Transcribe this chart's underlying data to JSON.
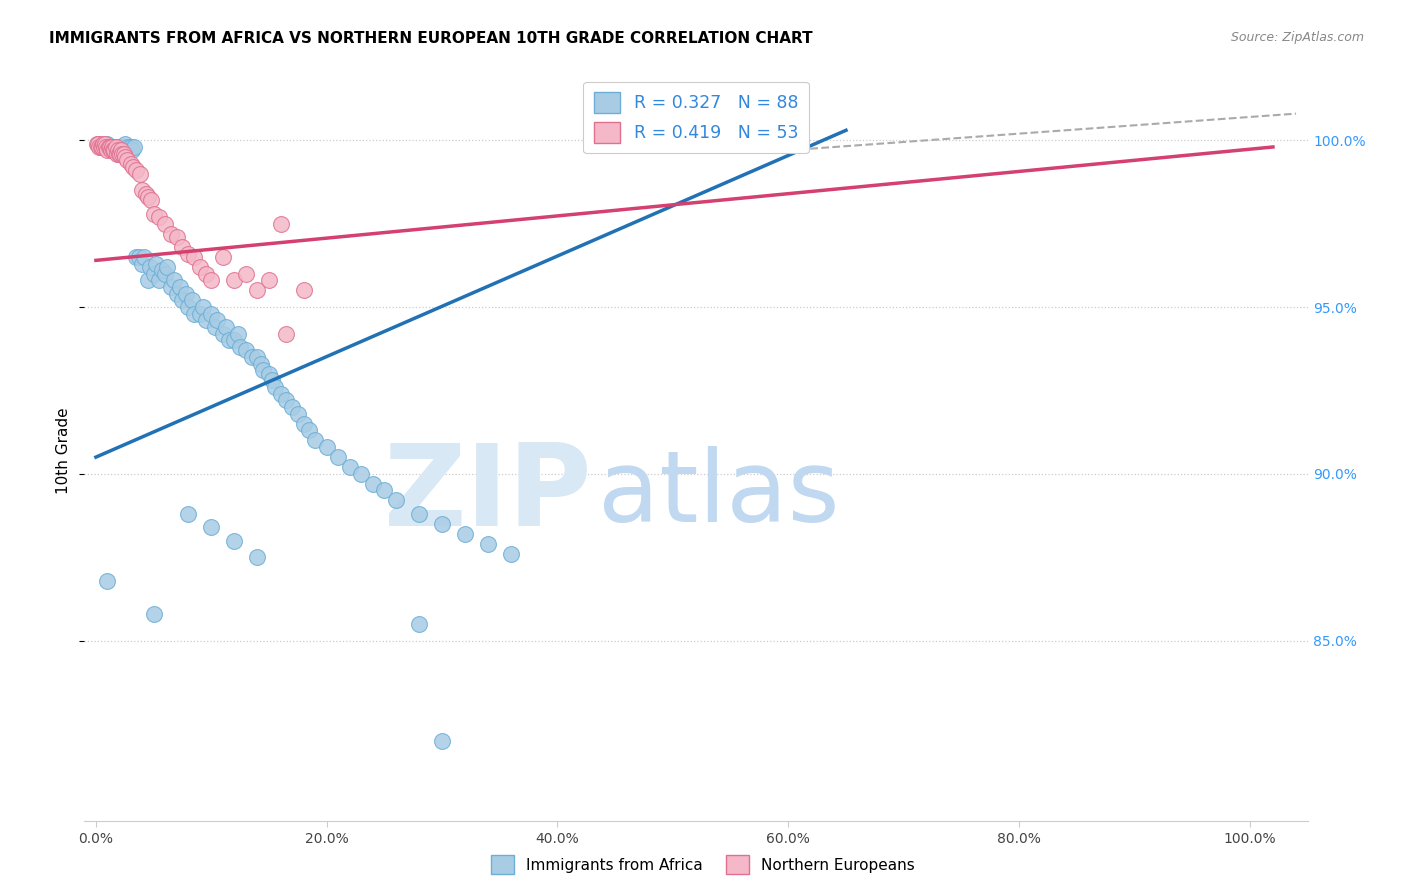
{
  "title": "IMMIGRANTS FROM AFRICA VS NORTHERN EUROPEAN 10TH GRADE CORRELATION CHART",
  "source": "Source: ZipAtlas.com",
  "ylabel": "10th Grade",
  "r_africa": 0.327,
  "n_africa": 88,
  "r_northern": 0.419,
  "n_northern": 53,
  "blue_color": "#a8cce4",
  "pink_color": "#f4b8c8",
  "blue_edge_color": "#6baed6",
  "pink_edge_color": "#e07090",
  "blue_line_color": "#2171b5",
  "pink_line_color": "#d44070",
  "legend_label_africa": "Immigrants from Africa",
  "legend_label_northern": "Northern Europeans",
  "watermark_zip": "ZIP",
  "watermark_atlas": "atlas",
  "xlim": [
    -0.01,
    1.05
  ],
  "ylim": [
    0.796,
    1.018
  ],
  "ytick_positions": [
    0.85,
    0.9,
    0.95,
    1.0
  ],
  "ytick_labels": [
    "85.0%",
    "90.0%",
    "95.0%",
    "100.0%"
  ],
  "xtick_positions": [
    0.0,
    0.2,
    0.4,
    0.6,
    0.8,
    1.0
  ],
  "xtick_labels": [
    "0.0%",
    "20.0%",
    "40.0%",
    "60.0%",
    "80.0%",
    "100.0%"
  ],
  "blue_line_x": [
    0.0,
    0.65
  ],
  "blue_line_y": [
    0.905,
    1.003
  ],
  "pink_line_x": [
    0.0,
    1.02
  ],
  "pink_line_y": [
    0.964,
    0.998
  ],
  "dash_line_x": [
    0.6,
    1.04
  ],
  "dash_line_y": [
    0.997,
    1.008
  ],
  "africa_x": [
    0.003,
    0.005,
    0.007,
    0.009,
    0.01,
    0.012,
    0.014,
    0.015,
    0.016,
    0.018,
    0.02,
    0.021,
    0.022,
    0.024,
    0.025,
    0.026,
    0.028,
    0.03,
    0.031,
    0.033,
    0.035,
    0.037,
    0.04,
    0.042,
    0.045,
    0.047,
    0.05,
    0.052,
    0.055,
    0.057,
    0.06,
    0.062,
    0.065,
    0.068,
    0.07,
    0.073,
    0.075,
    0.078,
    0.08,
    0.083,
    0.085,
    0.09,
    0.093,
    0.095,
    0.1,
    0.103,
    0.105,
    0.11,
    0.113,
    0.115,
    0.12,
    0.123,
    0.125,
    0.13,
    0.135,
    0.14,
    0.143,
    0.145,
    0.15,
    0.153,
    0.155,
    0.16,
    0.165,
    0.17,
    0.175,
    0.18,
    0.185,
    0.19,
    0.2,
    0.21,
    0.22,
    0.23,
    0.24,
    0.25,
    0.26,
    0.28,
    0.3,
    0.32,
    0.34,
    0.36,
    0.01,
    0.05,
    0.08,
    0.1,
    0.12,
    0.14,
    0.28,
    0.3
  ],
  "africa_y": [
    0.999,
    0.998,
    0.998,
    0.998,
    0.999,
    0.998,
    0.997,
    0.998,
    0.997,
    0.998,
    0.997,
    0.998,
    0.997,
    0.998,
    0.999,
    0.997,
    0.998,
    0.998,
    0.997,
    0.998,
    0.965,
    0.965,
    0.963,
    0.965,
    0.958,
    0.962,
    0.96,
    0.963,
    0.958,
    0.961,
    0.96,
    0.962,
    0.956,
    0.958,
    0.954,
    0.956,
    0.952,
    0.954,
    0.95,
    0.952,
    0.948,
    0.948,
    0.95,
    0.946,
    0.948,
    0.944,
    0.946,
    0.942,
    0.944,
    0.94,
    0.94,
    0.942,
    0.938,
    0.937,
    0.935,
    0.935,
    0.933,
    0.931,
    0.93,
    0.928,
    0.926,
    0.924,
    0.922,
    0.92,
    0.918,
    0.915,
    0.913,
    0.91,
    0.908,
    0.905,
    0.902,
    0.9,
    0.897,
    0.895,
    0.892,
    0.888,
    0.885,
    0.882,
    0.879,
    0.876,
    0.868,
    0.858,
    0.888,
    0.884,
    0.88,
    0.875,
    0.855,
    0.82
  ],
  "northern_x": [
    0.001,
    0.002,
    0.003,
    0.004,
    0.005,
    0.006,
    0.007,
    0.008,
    0.009,
    0.01,
    0.011,
    0.012,
    0.013,
    0.014,
    0.015,
    0.016,
    0.017,
    0.018,
    0.019,
    0.02,
    0.021,
    0.022,
    0.023,
    0.024,
    0.025,
    0.027,
    0.03,
    0.032,
    0.035,
    0.038,
    0.04,
    0.043,
    0.045,
    0.048,
    0.05,
    0.055,
    0.06,
    0.065,
    0.07,
    0.075,
    0.08,
    0.085,
    0.09,
    0.095,
    0.1,
    0.11,
    0.12,
    0.13,
    0.14,
    0.15,
    0.16,
    0.165,
    0.18
  ],
  "northern_y": [
    0.999,
    0.999,
    0.998,
    0.998,
    0.998,
    0.999,
    0.998,
    0.999,
    0.998,
    0.997,
    0.998,
    0.998,
    0.997,
    0.998,
    0.997,
    0.997,
    0.998,
    0.996,
    0.997,
    0.996,
    0.996,
    0.997,
    0.996,
    0.996,
    0.995,
    0.994,
    0.993,
    0.992,
    0.991,
    0.99,
    0.985,
    0.984,
    0.983,
    0.982,
    0.978,
    0.977,
    0.975,
    0.972,
    0.971,
    0.968,
    0.966,
    0.965,
    0.962,
    0.96,
    0.958,
    0.965,
    0.958,
    0.96,
    0.955,
    0.958,
    0.975,
    0.942,
    0.955
  ]
}
